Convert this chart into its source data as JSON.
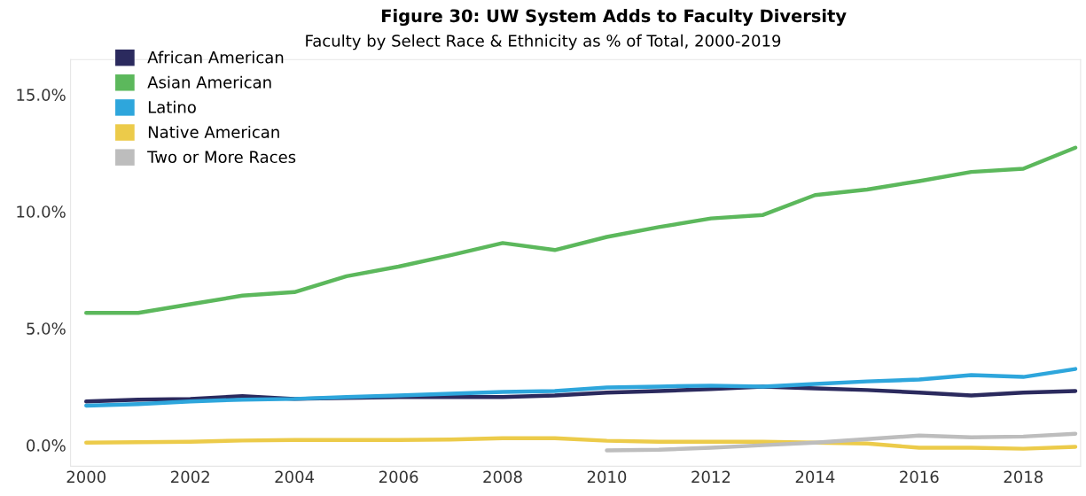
{
  "chart_data": {
    "type": "line",
    "title": "Figure 30: UW System Adds to Faculty Diversity",
    "subtitle": "Faculty by Select Race & Ethnicity as % of Total, 2000-2019",
    "x": [
      2000,
      2001,
      2002,
      2003,
      2004,
      2005,
      2006,
      2007,
      2008,
      2009,
      2010,
      2011,
      2012,
      2013,
      2014,
      2015,
      2016,
      2017,
      2018,
      2019
    ],
    "series": [
      {
        "name": "African American",
        "color": "#2b2a5e",
        "values": [
          1.87,
          1.95,
          1.98,
          2.1,
          1.98,
          2.02,
          2.06,
          2.06,
          2.06,
          2.13,
          2.25,
          2.32,
          2.4,
          2.51,
          2.43,
          2.36,
          2.25,
          2.13,
          2.25,
          2.32
        ]
      },
      {
        "name": "Asian American",
        "color": "#5cb85c",
        "values": [
          5.66,
          5.66,
          6.03,
          6.4,
          6.55,
          7.23,
          7.64,
          8.13,
          8.65,
          8.35,
          8.91,
          9.33,
          9.7,
          9.85,
          10.7,
          10.94,
          11.3,
          11.69,
          11.83,
          12.73
        ]
      },
      {
        "name": "Latino",
        "color": "#2ea6dc",
        "values": [
          1.69,
          1.76,
          1.87,
          1.95,
          1.98,
          2.06,
          2.13,
          2.2,
          2.28,
          2.32,
          2.47,
          2.51,
          2.55,
          2.51,
          2.62,
          2.73,
          2.81,
          3.0,
          2.92,
          3.26
        ]
      },
      {
        "name": "Native American",
        "color": "#eccb4a",
        "values": [
          0.11,
          0.13,
          0.15,
          0.2,
          0.22,
          0.22,
          0.22,
          0.24,
          0.3,
          0.3,
          0.19,
          0.15,
          0.15,
          0.15,
          0.11,
          0.07,
          -0.11,
          -0.11,
          -0.15,
          -0.07
        ]
      },
      {
        "name": "Two or More Races",
        "color": "#bdbdbd",
        "values": [
          null,
          null,
          null,
          null,
          null,
          null,
          null,
          null,
          null,
          null,
          -0.22,
          -0.19,
          -0.11,
          0.0,
          0.11,
          0.26,
          0.41,
          0.34,
          0.37,
          0.49
        ]
      }
    ],
    "xlim": [
      1999.7,
      2019.1
    ],
    "xticks": [
      2000,
      2002,
      2004,
      2006,
      2008,
      2010,
      2012,
      2014,
      2016,
      2018
    ],
    "ylim": [
      -0.9,
      16.5
    ],
    "yticks": [
      {
        "value": 0,
        "label": "0.0%"
      },
      {
        "value": 5,
        "label": "5.0%"
      },
      {
        "value": 10,
        "label": "10.0%"
      },
      {
        "value": 15,
        "label": "15.0%"
      }
    ],
    "grid": false,
    "legend": "top left",
    "marker": "none",
    "line_style": "solid"
  }
}
